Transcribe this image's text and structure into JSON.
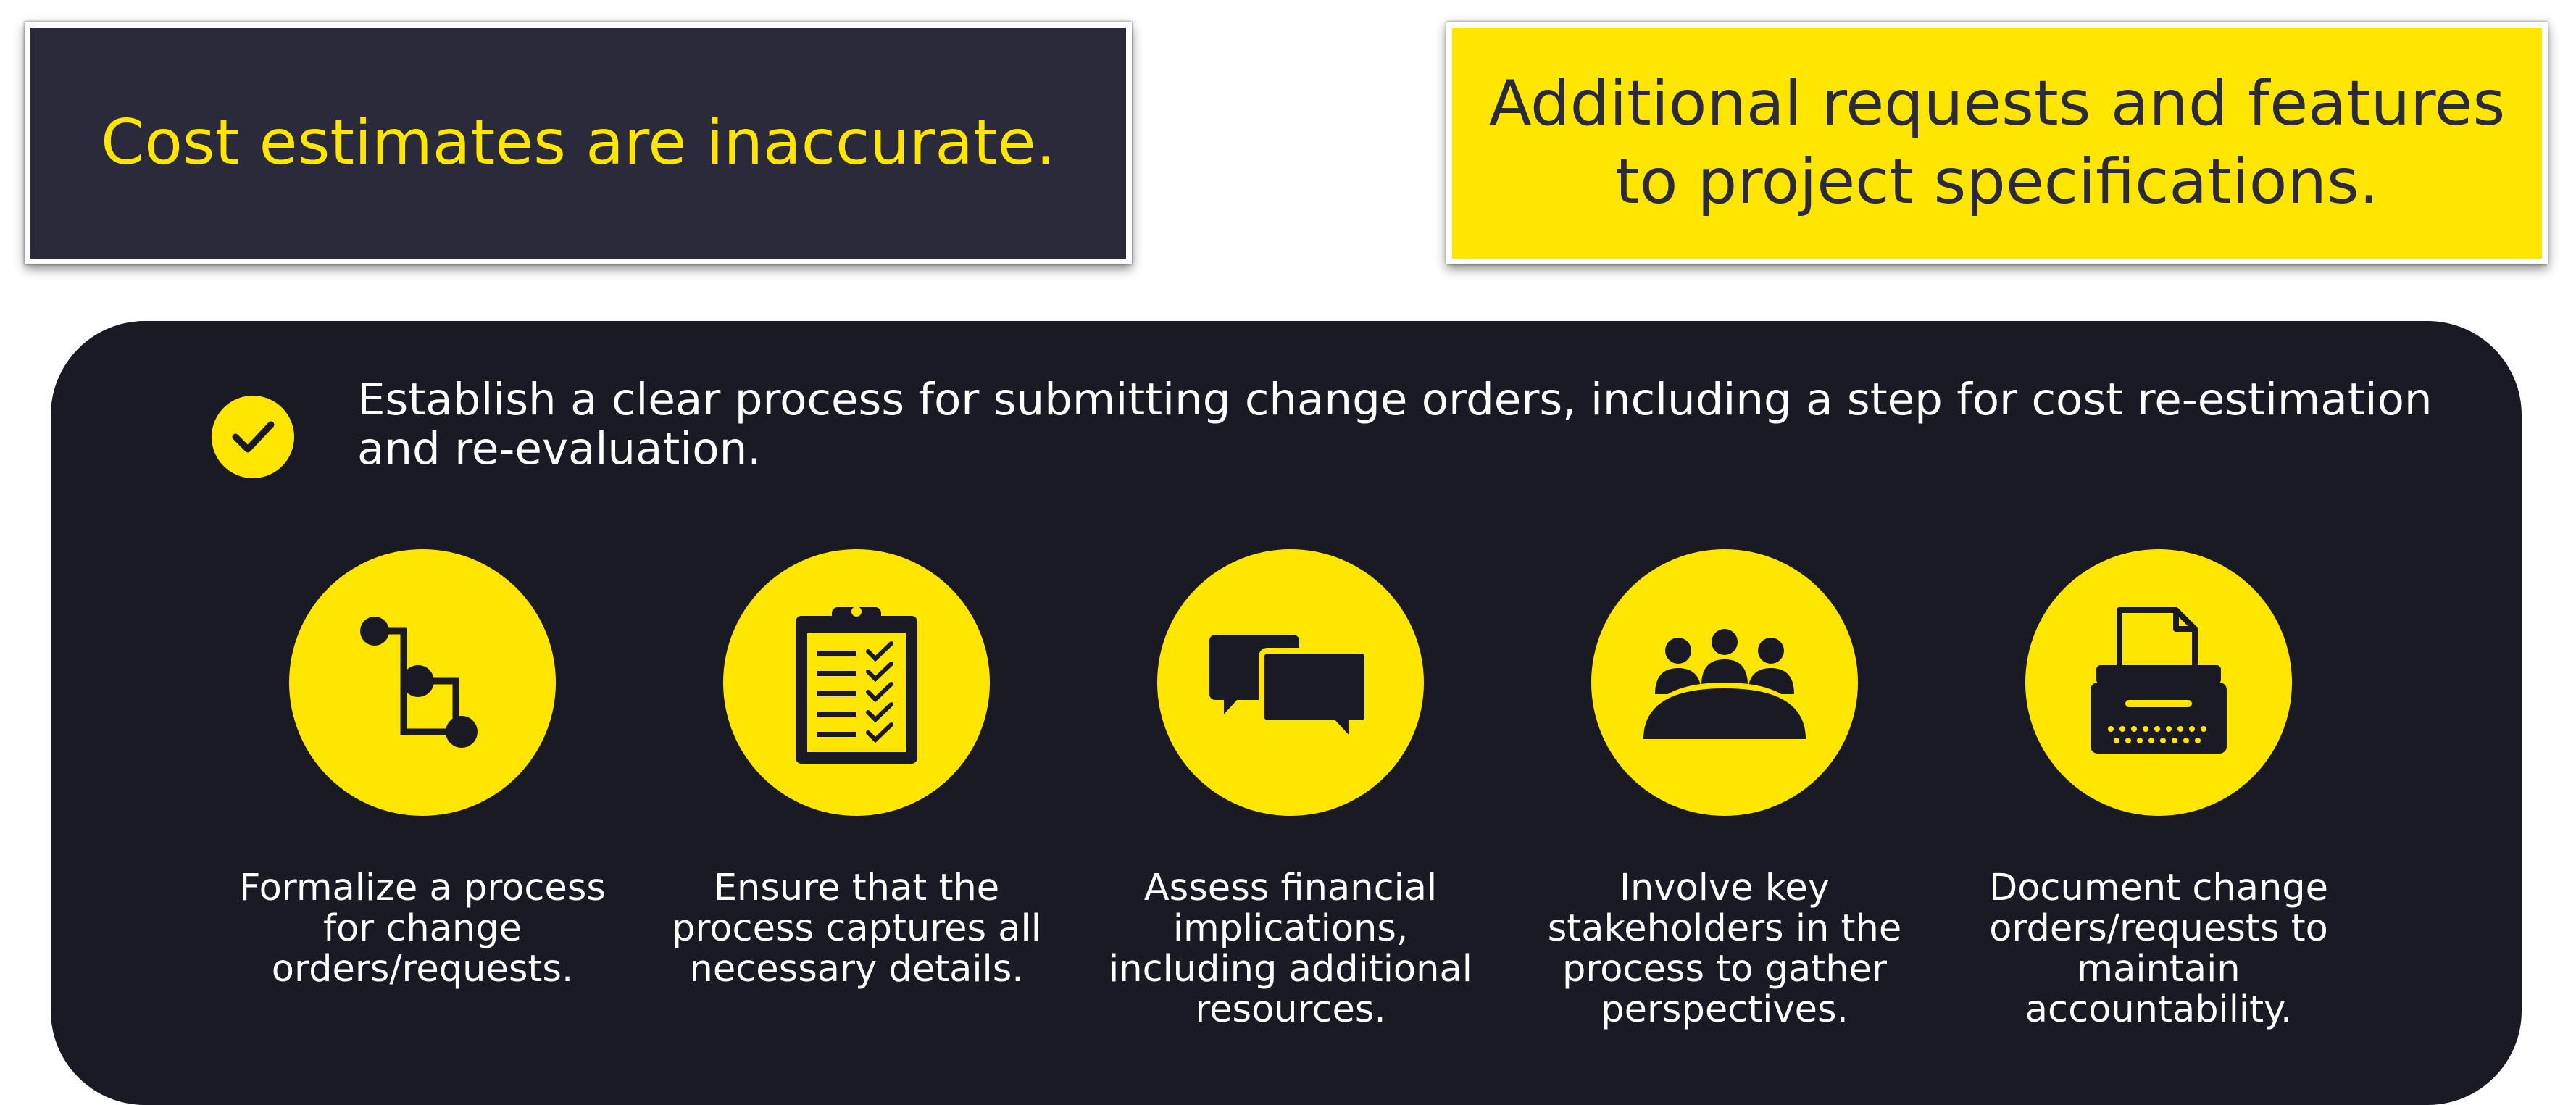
{
  "top_left_box": {
    "text": "Cost estimates are inaccurate."
  },
  "top_right_box": {
    "text": "Additional requests and features to project specifications."
  },
  "main_statement": {
    "text": "Establish a clear process for submitting change orders, including a step for cost re-estimation and re-evaluation.",
    "icon": "checkmark-icon"
  },
  "items": [
    {
      "icon": "process-flow-icon",
      "text": "Formalize a process for change orders/requests."
    },
    {
      "icon": "clipboard-checklist-icon",
      "text": "Ensure that the process captures all necessary details."
    },
    {
      "icon": "chat-bubbles-icon",
      "text": "Assess financial implications, including additional resources."
    },
    {
      "icon": "meeting-people-icon",
      "text": "Involve key stakeholders in the process to gather perspectives."
    },
    {
      "icon": "typewriter-icon",
      "text": "Document change orders/requests to maintain accountability."
    }
  ],
  "colors": {
    "accent": "#ffe600",
    "dark_box": "#2a2a3a",
    "panel": "#1a1a24",
    "text_light": "#ffffff"
  }
}
